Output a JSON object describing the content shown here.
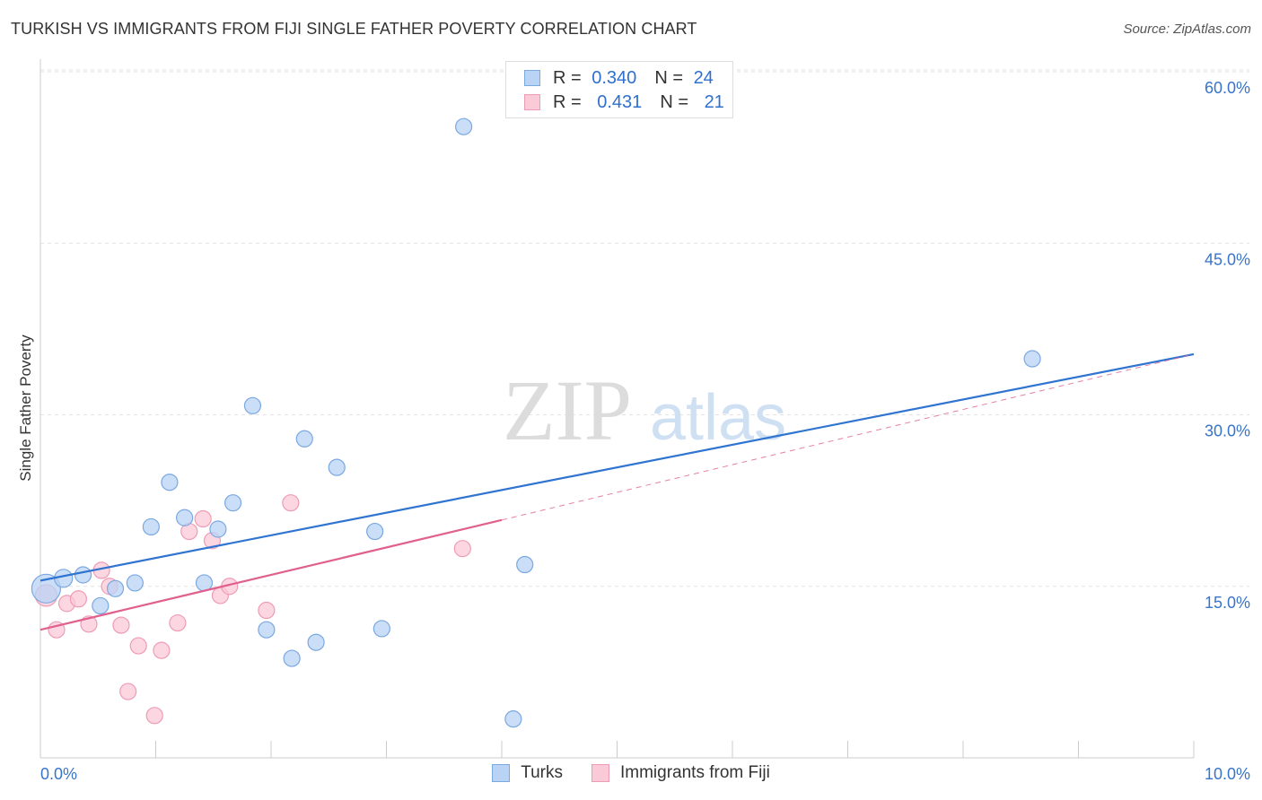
{
  "title": "TURKISH VS IMMIGRANTS FROM FIJI SINGLE FATHER POVERTY CORRELATION CHART",
  "source": "Source: ZipAtlas.com",
  "watermark": {
    "zip": "ZIP",
    "atlas": "atlas"
  },
  "colors": {
    "turks_fill": "#b9d3f5",
    "turks_stroke": "#7aa8e0",
    "turks_line": "#2f74d0",
    "fiji_fill": "#fbcad8",
    "fiji_stroke": "#ee9cb6",
    "fiji_line": "#e0608e",
    "tick_text": "#3874c8"
  },
  "legend": {
    "turks": {
      "r_label": "R =",
      "r_value": "0.340",
      "n_label": "N =",
      "n_value": "24"
    },
    "fiji": {
      "r_label": "R =",
      "r_value": "0.431",
      "n_label": "N =",
      "n_value": "21"
    }
  },
  "bottom_legend": {
    "turks": "Turks",
    "fiji": "Immigrants from Fiji"
  },
  "chart_data": {
    "type": "scatter",
    "title": "TURKISH VS IMMIGRANTS FROM FIJI SINGLE FATHER POVERTY CORRELATION CHART",
    "xlabel": "",
    "ylabel": "Single Father Poverty",
    "xlim": [
      0,
      10
    ],
    "ylim": [
      0,
      60
    ],
    "x_tick_labels": [
      "0.0%",
      "10.0%"
    ],
    "y_ticks": [
      15,
      30,
      45,
      60
    ],
    "y_tick_labels": [
      "15.0%",
      "30.0%",
      "45.0%",
      "60.0%"
    ],
    "grid": true,
    "legend_position": "top-center",
    "series": [
      {
        "name": "Turks",
        "r": 0.34,
        "n": 24,
        "points": [
          [
            0.05,
            14.8,
            16
          ],
          [
            0.2,
            15.7,
            10
          ],
          [
            0.37,
            16.0,
            9
          ],
          [
            0.52,
            13.3,
            9
          ],
          [
            0.65,
            14.8,
            9
          ],
          [
            0.82,
            15.3,
            9
          ],
          [
            0.96,
            20.2,
            9
          ],
          [
            1.12,
            24.1,
            9
          ],
          [
            1.25,
            21.0,
            9
          ],
          [
            1.42,
            15.3,
            9
          ],
          [
            1.54,
            20.0,
            9
          ],
          [
            1.67,
            22.3,
            9
          ],
          [
            1.84,
            30.8,
            9
          ],
          [
            1.96,
            11.2,
            9
          ],
          [
            2.18,
            8.7,
            9
          ],
          [
            2.29,
            27.9,
            9
          ],
          [
            2.39,
            10.1,
            9
          ],
          [
            2.57,
            25.4,
            9
          ],
          [
            2.9,
            19.8,
            9
          ],
          [
            2.96,
            11.3,
            9
          ],
          [
            3.67,
            55.2,
            9
          ],
          [
            4.1,
            3.4,
            9
          ],
          [
            4.2,
            16.9,
            9
          ],
          [
            8.6,
            34.9,
            9
          ]
        ],
        "trend": {
          "x0": 0.0,
          "y0": 15.5,
          "x1": 10.0,
          "y1": 35.3
        }
      },
      {
        "name": "Immigrants from Fiji",
        "r": 0.431,
        "n": 21,
        "points": [
          [
            0.05,
            14.2,
            12
          ],
          [
            0.14,
            11.2,
            9
          ],
          [
            0.23,
            13.5,
            9
          ],
          [
            0.33,
            13.9,
            9
          ],
          [
            0.42,
            11.7,
            9
          ],
          [
            0.53,
            16.4,
            9
          ],
          [
            0.6,
            15.0,
            9
          ],
          [
            0.7,
            11.6,
            9
          ],
          [
            0.76,
            5.8,
            9
          ],
          [
            0.85,
            9.8,
            9
          ],
          [
            0.99,
            3.7,
            9
          ],
          [
            1.05,
            9.4,
            9
          ],
          [
            1.19,
            11.8,
            9
          ],
          [
            1.29,
            19.8,
            9
          ],
          [
            1.41,
            20.9,
            9
          ],
          [
            1.49,
            19.0,
            9
          ],
          [
            1.56,
            14.2,
            9
          ],
          [
            1.64,
            15.0,
            9
          ],
          [
            1.96,
            12.9,
            9
          ],
          [
            2.17,
            22.3,
            9
          ],
          [
            3.66,
            18.3,
            9
          ]
        ],
        "trend": {
          "x0": 0.0,
          "y0": 11.2,
          "x1": 4.0,
          "y1": 20.8
        },
        "trend_extension": {
          "x0": 4.0,
          "y0": 20.8,
          "x1": 10.0,
          "y1": 35.3
        }
      }
    ]
  }
}
